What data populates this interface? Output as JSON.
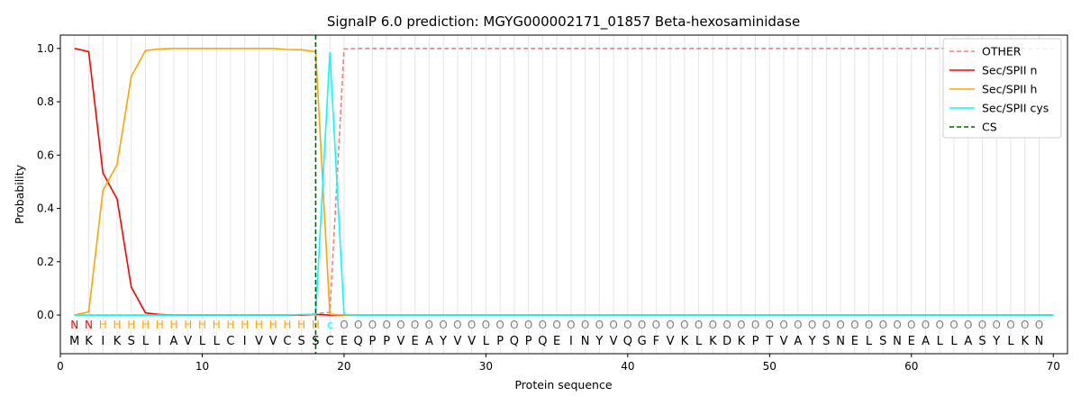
{
  "chart_data": {
    "type": "line",
    "title": "SignalP 6.0 prediction: MGYG000002171_01857 Beta-hexosaminidase",
    "xlabel": "Protein sequence",
    "ylabel": "Probability",
    "xlim": [
      0,
      71
    ],
    "ylim": [
      -0.145,
      1.05
    ],
    "x_ticks": [
      0,
      10,
      20,
      30,
      40,
      50,
      60,
      70
    ],
    "y_ticks": [
      0.0,
      0.2,
      0.4,
      0.6,
      0.8,
      1.0
    ],
    "x_tick_labels": [
      "0",
      "10",
      "20",
      "30",
      "40",
      "50",
      "60",
      "70"
    ],
    "y_tick_labels": [
      "0.0",
      "0.2",
      "0.4",
      "0.6",
      "0.8",
      "1.0"
    ],
    "grid": "vertical lines at each residue",
    "legend_position": "top-right",
    "sequence": "MKIKSLIAVLLCIVVCSSCEQPPVEAYVVLPQPQEINYVQGFVKLKDKPTVAYSNELSNEALLASYLKN",
    "annotation": "NNHHHHHHHHHHHHHHHHcOOOOOOOOOOOOOOOOOOOOOOOOOOOOOOOOOOOOOOOOOOOOOOOOOO",
    "annotation_colors": {
      "N": "#ff0000",
      "H": "#ffa500",
      "c": "#00ffff",
      "O": "#808080"
    },
    "cleavage_site": 18,
    "series": [
      {
        "name": "OTHER",
        "color": "#f08080",
        "dash": "dashed",
        "points": [
          [
            1,
            0
          ],
          [
            17,
            0
          ],
          [
            18,
            0.005
          ],
          [
            19,
            0.01
          ],
          [
            20,
            0.998
          ],
          [
            21,
            1.0
          ],
          [
            70,
            1.0
          ]
        ]
      },
      {
        "name": "Sec/SPII n",
        "color": "#ff0000",
        "dash": "solid",
        "points": [
          [
            1,
            1.0
          ],
          [
            2,
            0.988
          ],
          [
            3,
            0.533
          ],
          [
            4,
            0.435
          ],
          [
            5,
            0.105
          ],
          [
            6,
            0.008
          ],
          [
            7,
            0.002
          ],
          [
            8,
            0
          ],
          [
            17,
            0
          ],
          [
            18,
            0.002
          ],
          [
            19,
            0.0
          ],
          [
            70,
            0
          ]
        ]
      },
      {
        "name": "Sec/SPII h",
        "color": "#ffa500",
        "dash": "solid",
        "points": [
          [
            1,
            0
          ],
          [
            2,
            0.012
          ],
          [
            3,
            0.467
          ],
          [
            4,
            0.565
          ],
          [
            5,
            0.895
          ],
          [
            6,
            0.992
          ],
          [
            7,
            0.998
          ],
          [
            8,
            1.0
          ],
          [
            15,
            1.0
          ],
          [
            16,
            0.996
          ],
          [
            17,
            0.995
          ],
          [
            18,
            0.988
          ],
          [
            19,
            0.003
          ],
          [
            20,
            0
          ],
          [
            70,
            0
          ]
        ]
      },
      {
        "name": "Sec/SPII cys",
        "color": "#00ffff",
        "dash": "solid",
        "points": [
          [
            1,
            0
          ],
          [
            16,
            0
          ],
          [
            17,
            0.002
          ],
          [
            18,
            0.003
          ],
          [
            19,
            0.985
          ],
          [
            20,
            0.002
          ],
          [
            21,
            0
          ],
          [
            70,
            0
          ]
        ]
      },
      {
        "name": "CS",
        "color": "#006400",
        "dash": "dashed",
        "points": []
      }
    ]
  }
}
